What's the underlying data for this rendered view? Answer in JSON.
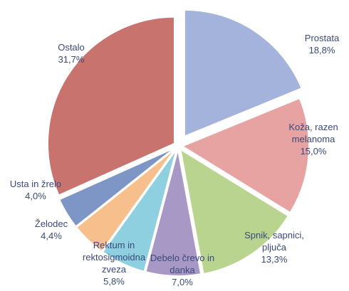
{
  "chart_data": {
    "type": "pie",
    "categories": [
      "Prostata",
      "Koža, razen melanoma",
      "Spnik, sapnici, pljuča",
      "Debelo črevo in danka",
      "Rektum in rektosigmoidna zveza",
      "Želodec",
      "Usta in žrelo",
      "Ostalo"
    ],
    "values": [
      18.8,
      15.0,
      13.3,
      7.0,
      5.8,
      4.4,
      4.0,
      31.7
    ],
    "value_labels": [
      "18,8%",
      "15,0%",
      "13,3%",
      "7,0%",
      "5,8%",
      "4,4%",
      "4,0%",
      "31,7%"
    ],
    "colors": [
      "#a3b3dc",
      "#e6a3a1",
      "#b8d48e",
      "#a898c6",
      "#8ecfe0",
      "#f7bf8b",
      "#7e96c5",
      "#c8736e"
    ]
  }
}
